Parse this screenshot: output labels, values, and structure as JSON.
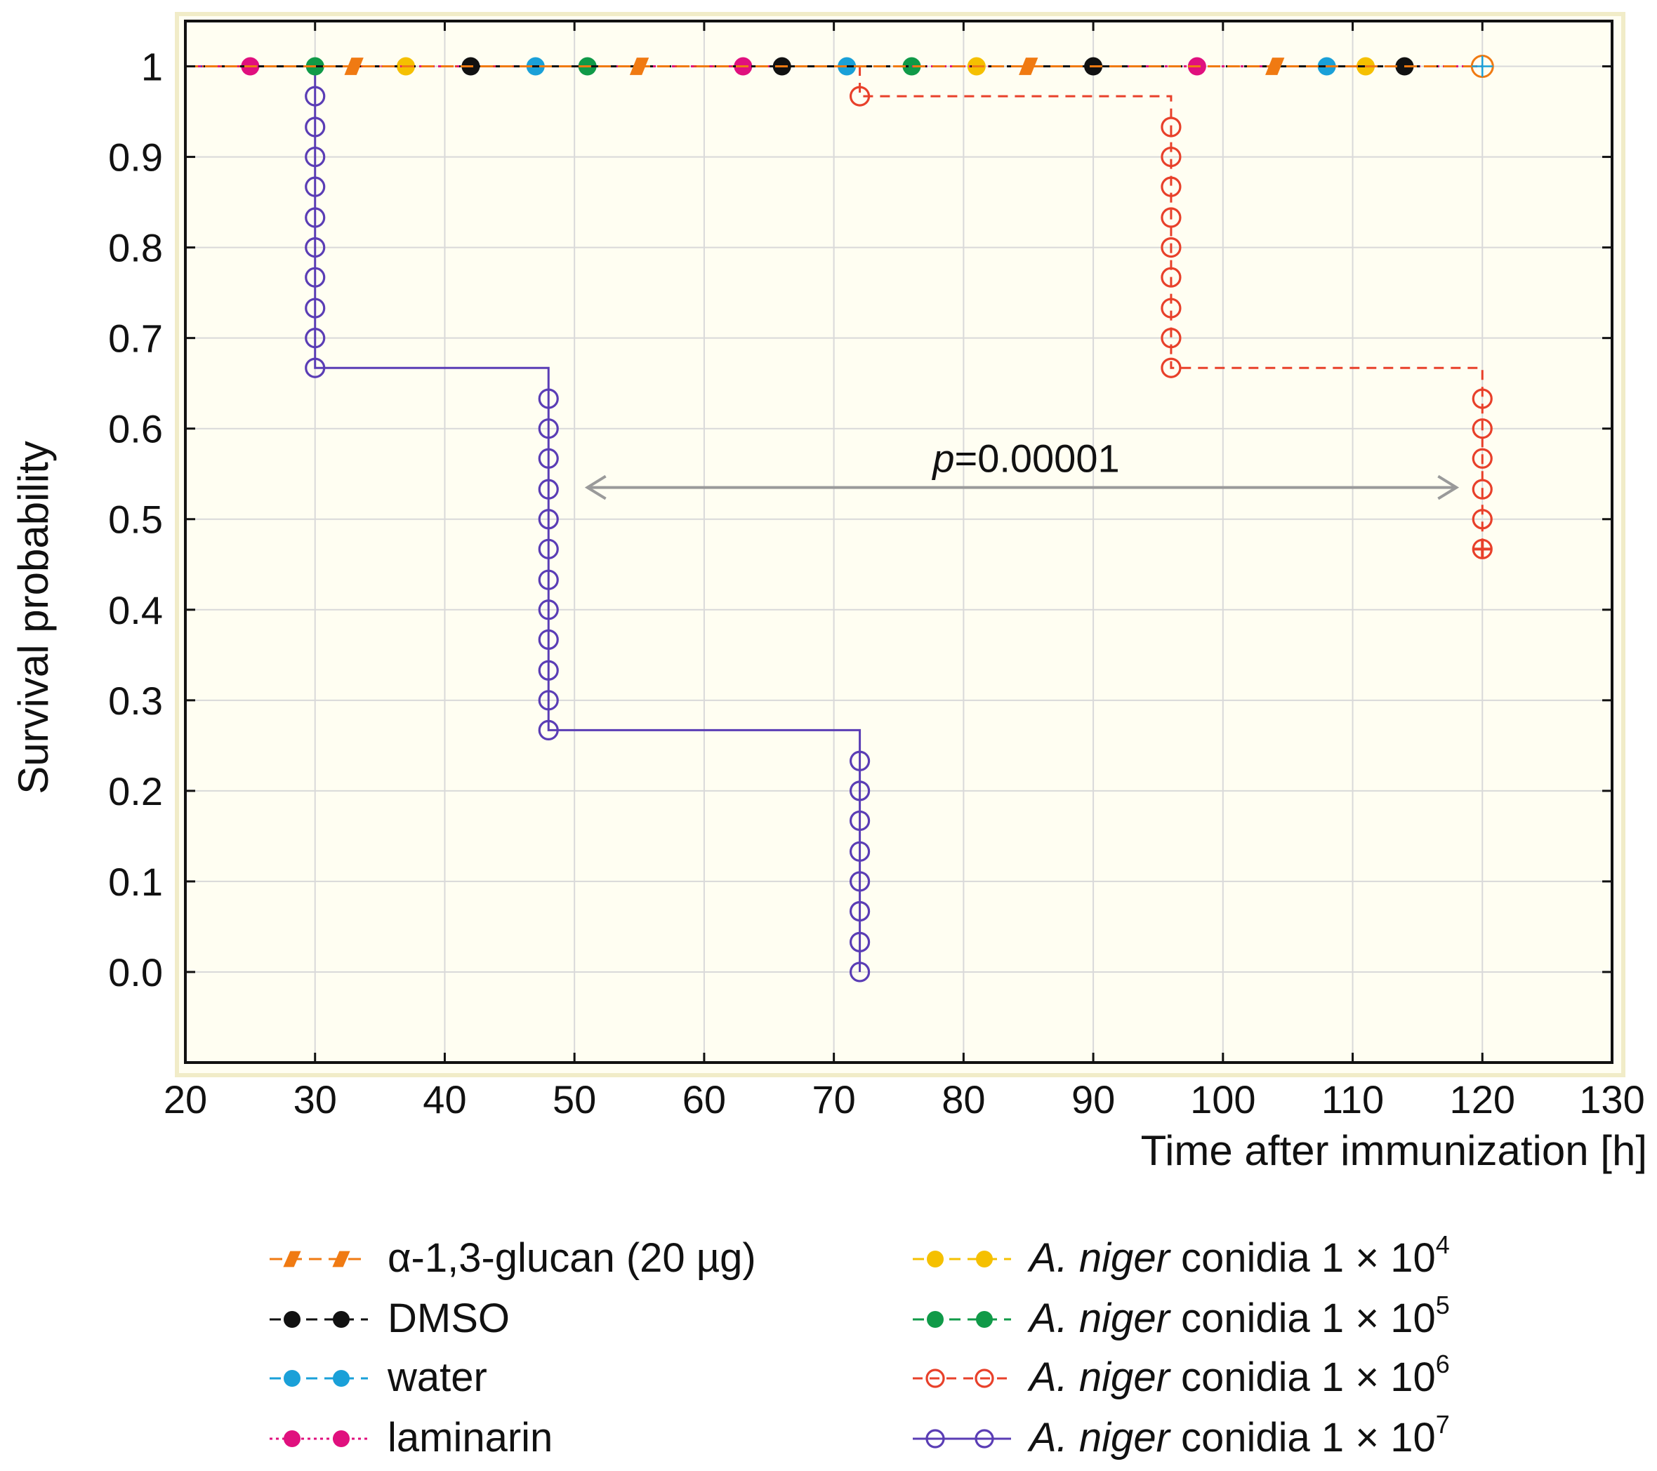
{
  "chart_data": {
    "type": "line",
    "subtype": "kaplan-meier survival",
    "xlabel": "Time after immunization [h]",
    "ylabel": "Survival probability",
    "xlim": [
      20,
      130
    ],
    "ylim": [
      -0.1,
      1.05
    ],
    "x_ticks": [
      "20",
      "30",
      "40",
      "50",
      "60",
      "70",
      "80",
      "90",
      "100",
      "110",
      "120",
      "130"
    ],
    "y_ticks": [
      {
        "value": 1.0,
        "label": "1"
      },
      {
        "value": 0.9,
        "label": "0.9"
      },
      {
        "value": 0.8,
        "label": "0.8"
      },
      {
        "value": 0.7,
        "label": "0.7"
      },
      {
        "value": 0.6,
        "label": "0.6"
      },
      {
        "value": 0.5,
        "label": "0.5"
      },
      {
        "value": 0.4,
        "label": "0.4"
      },
      {
        "value": 0.3,
        "label": "0.3"
      },
      {
        "value": 0.2,
        "label": "0.2"
      },
      {
        "value": 0.1,
        "label": "0.1"
      },
      {
        "value": 0.0,
        "label": "0.0"
      }
    ],
    "grid": true,
    "annotation": {
      "italic": "p",
      "text": "=0.00001",
      "from_x": 51,
      "to_x": 118,
      "y": 0.535
    },
    "series": [
      {
        "key": "glucan",
        "name": "α-1,3-glucan (20 µg)",
        "color": "#f07a12",
        "dash": "18,10",
        "marker": "para",
        "steps": [
          [
            20,
            1.0
          ],
          [
            120,
            1.0
          ]
        ],
        "markers_x": [
          33,
          55,
          85,
          104
        ]
      },
      {
        "key": "dmso",
        "name": "DMSO",
        "color": "#111111",
        "dash": "16,10",
        "marker": "filled",
        "steps": [
          [
            20,
            1.0
          ],
          [
            120,
            1.0
          ]
        ],
        "markers_x": [
          42,
          66,
          90,
          114
        ]
      },
      {
        "key": "water",
        "name": "water",
        "color": "#1aa0d8",
        "dash": "16,10",
        "marker": "filled",
        "steps": [
          [
            20,
            1.0
          ],
          [
            120,
            1.0
          ]
        ],
        "markers_x": [
          47,
          71,
          108
        ]
      },
      {
        "key": "laminarin",
        "name": "laminarin",
        "color": "#e0107e",
        "dash": "4,5",
        "marker": "filled",
        "steps": [
          [
            20,
            1.0
          ],
          [
            120,
            1.0
          ]
        ],
        "markers_x": [
          25,
          63,
          98
        ]
      },
      {
        "key": "c4",
        "name_italic": "A. niger",
        "name": " conidia 1 × 10",
        "sup": "4",
        "color": "#f5c000",
        "dash": "16,10",
        "marker": "filled",
        "steps": [
          [
            20,
            1.0
          ],
          [
            120,
            1.0
          ]
        ],
        "markers_x": [
          37,
          81,
          111
        ]
      },
      {
        "key": "c5",
        "name_italic": "A. niger",
        "name": " conidia 1 × 10",
        "sup": "5",
        "color": "#109a48",
        "dash": "16,10",
        "marker": "filled",
        "steps": [
          [
            20,
            1.0
          ],
          [
            120,
            1.0
          ]
        ],
        "markers_x": [
          30,
          51,
          76
        ]
      },
      {
        "key": "c6",
        "name_italic": "A. niger",
        "name": " conidia 1 × 10",
        "sup": "6",
        "color": "#e8402a",
        "dash": "14,10",
        "marker": "open",
        "steps": [
          [
            20,
            1.0
          ],
          [
            72,
            1.0
          ],
          [
            72,
            0.967
          ],
          [
            96,
            0.967
          ],
          [
            96,
            0.667
          ],
          [
            120,
            0.667
          ],
          [
            120,
            0.467
          ]
        ],
        "markers": [
          [
            72,
            0.967
          ],
          [
            96,
            0.933
          ],
          [
            96,
            0.9
          ],
          [
            96,
            0.867
          ],
          [
            96,
            0.833
          ],
          [
            96,
            0.8
          ],
          [
            96,
            0.767
          ],
          [
            96,
            0.733
          ],
          [
            96,
            0.7
          ],
          [
            96,
            0.667
          ],
          [
            120,
            0.633
          ],
          [
            120,
            0.6
          ],
          [
            120,
            0.567
          ],
          [
            120,
            0.533
          ],
          [
            120,
            0.5
          ],
          [
            120,
            0.467
          ]
        ]
      },
      {
        "key": "c7",
        "name_italic": "A. niger",
        "name": " conidia 1 × 10",
        "sup": "7",
        "color": "#5a3db5",
        "dash": "",
        "marker": "open",
        "steps": [
          [
            20,
            1.0
          ],
          [
            30,
            1.0
          ],
          [
            30,
            0.667
          ],
          [
            48,
            0.667
          ],
          [
            48,
            0.267
          ],
          [
            72,
            0.267
          ],
          [
            72,
            0.0
          ]
        ],
        "markers": [
          [
            30,
            0.967
          ],
          [
            30,
            0.933
          ],
          [
            30,
            0.9
          ],
          [
            30,
            0.867
          ],
          [
            30,
            0.833
          ],
          [
            30,
            0.8
          ],
          [
            30,
            0.767
          ],
          [
            30,
            0.733
          ],
          [
            30,
            0.7
          ],
          [
            30,
            0.667
          ],
          [
            48,
            0.633
          ],
          [
            48,
            0.6
          ],
          [
            48,
            0.567
          ],
          [
            48,
            0.533
          ],
          [
            48,
            0.5
          ],
          [
            48,
            0.467
          ],
          [
            48,
            0.433
          ],
          [
            48,
            0.4
          ],
          [
            48,
            0.367
          ],
          [
            48,
            0.333
          ],
          [
            48,
            0.3
          ],
          [
            48,
            0.267
          ],
          [
            72,
            0.233
          ],
          [
            72,
            0.2
          ],
          [
            72,
            0.167
          ],
          [
            72,
            0.133
          ],
          [
            72,
            0.1
          ],
          [
            72,
            0.067
          ],
          [
            72,
            0.033
          ],
          [
            72,
            0.0
          ]
        ]
      }
    ]
  }
}
